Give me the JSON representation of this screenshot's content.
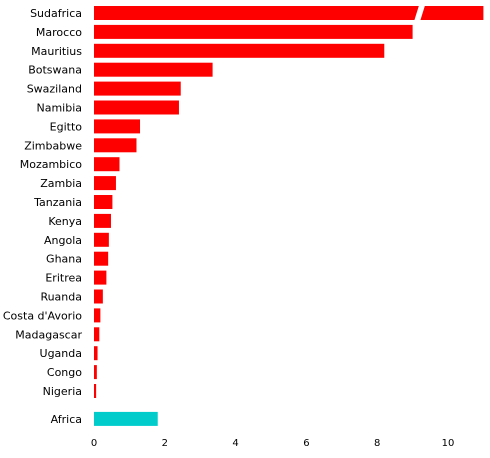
{
  "chart_data": {
    "type": "bar",
    "orientation": "horizontal",
    "title": "",
    "xlabel": "",
    "ylabel": "",
    "xlim": [
      0,
      11
    ],
    "x_ticks": [
      "0",
      "2",
      "4",
      "6",
      "8",
      "10"
    ],
    "grid": false,
    "legend": "none",
    "axis_break": true,
    "categories": [
      "Sudafrica",
      "Marocco",
      "Mauritius",
      "Botswana",
      "Swaziland",
      "Namibia",
      "Egitto",
      "Zimbabwe",
      "Mozambico",
      "Zambia",
      "Tanzania",
      "Kenya",
      "Angola",
      "Ghana",
      "Eritrea",
      "Ruanda",
      "Costa d'Avorio",
      "Madagascar",
      "Uganda",
      "Congo",
      "Nigeria",
      "Africa"
    ],
    "values": [
      11.0,
      9.0,
      8.2,
      3.35,
      2.45,
      2.4,
      1.3,
      1.2,
      0.72,
      0.62,
      0.52,
      0.48,
      0.42,
      0.4,
      0.35,
      0.25,
      0.18,
      0.15,
      0.1,
      0.08,
      0.06,
      1.8
    ],
    "bar_colors": [
      "#ff0000",
      "#ff0000",
      "#ff0000",
      "#ff0000",
      "#ff0000",
      "#ff0000",
      "#ff0000",
      "#ff0000",
      "#ff0000",
      "#ff0000",
      "#ff0000",
      "#ff0000",
      "#ff0000",
      "#ff0000",
      "#ff0000",
      "#ff0000",
      "#ff0000",
      "#ff0000",
      "#ff0000",
      "#ff0000",
      "#ff0000",
      "#00cccc"
    ]
  }
}
